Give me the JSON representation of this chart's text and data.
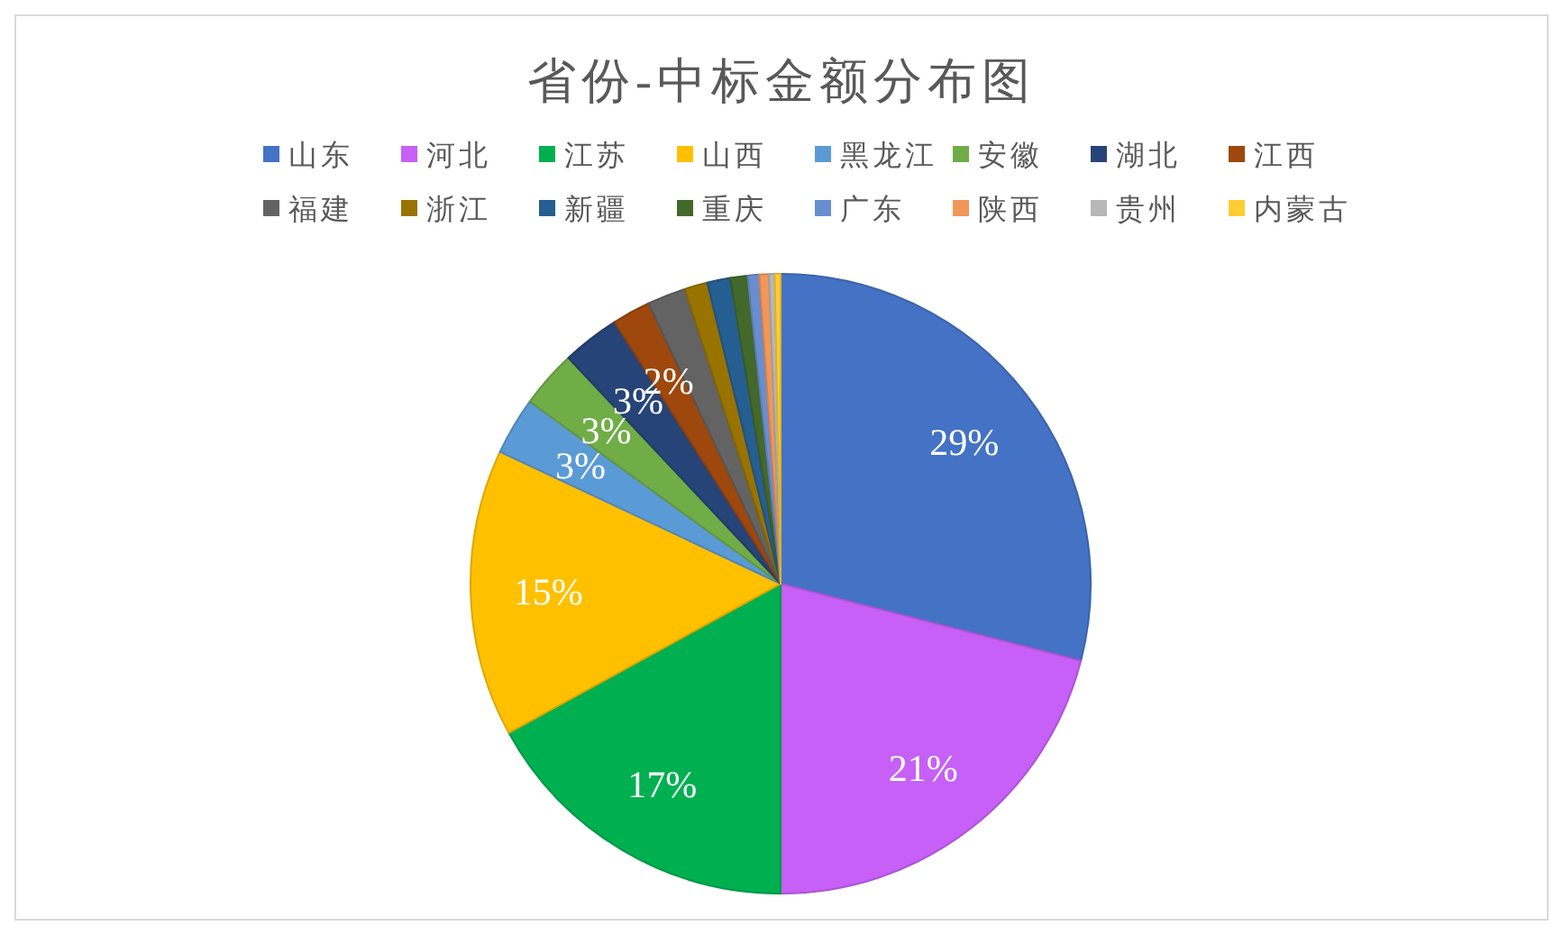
{
  "chart_data": {
    "type": "pie",
    "title": "省份-中标金额分布图",
    "categories": [
      "山东",
      "河北",
      "江苏",
      "山西",
      "黑龙江",
      "安徽",
      "湖北",
      "江西",
      "福建",
      "浙江",
      "新疆",
      "重庆",
      "广东",
      "陕西",
      "贵州",
      "内蒙古"
    ],
    "values": [
      29,
      21,
      17,
      15,
      3,
      3,
      3,
      2,
      2,
      1.2,
      1.2,
      0.9,
      0.6,
      0.5,
      0.3,
      0.3
    ],
    "value_labels": [
      "29%",
      "21%",
      "17%",
      "15%",
      "3%",
      "3%",
      "3%",
      "2%",
      null,
      null,
      null,
      null,
      null,
      null,
      null,
      null
    ],
    "colors": [
      "#4472c4",
      "#c660f6",
      "#00b050",
      "#ffc000",
      "#5b9bd5",
      "#70ad47",
      "#264478",
      "#9e480e",
      "#636363",
      "#997300",
      "#255e91",
      "#43682b",
      "#698ed0",
      "#f1975a",
      "#b7b7b7",
      "#ffcd33"
    ],
    "legend": "top"
  }
}
